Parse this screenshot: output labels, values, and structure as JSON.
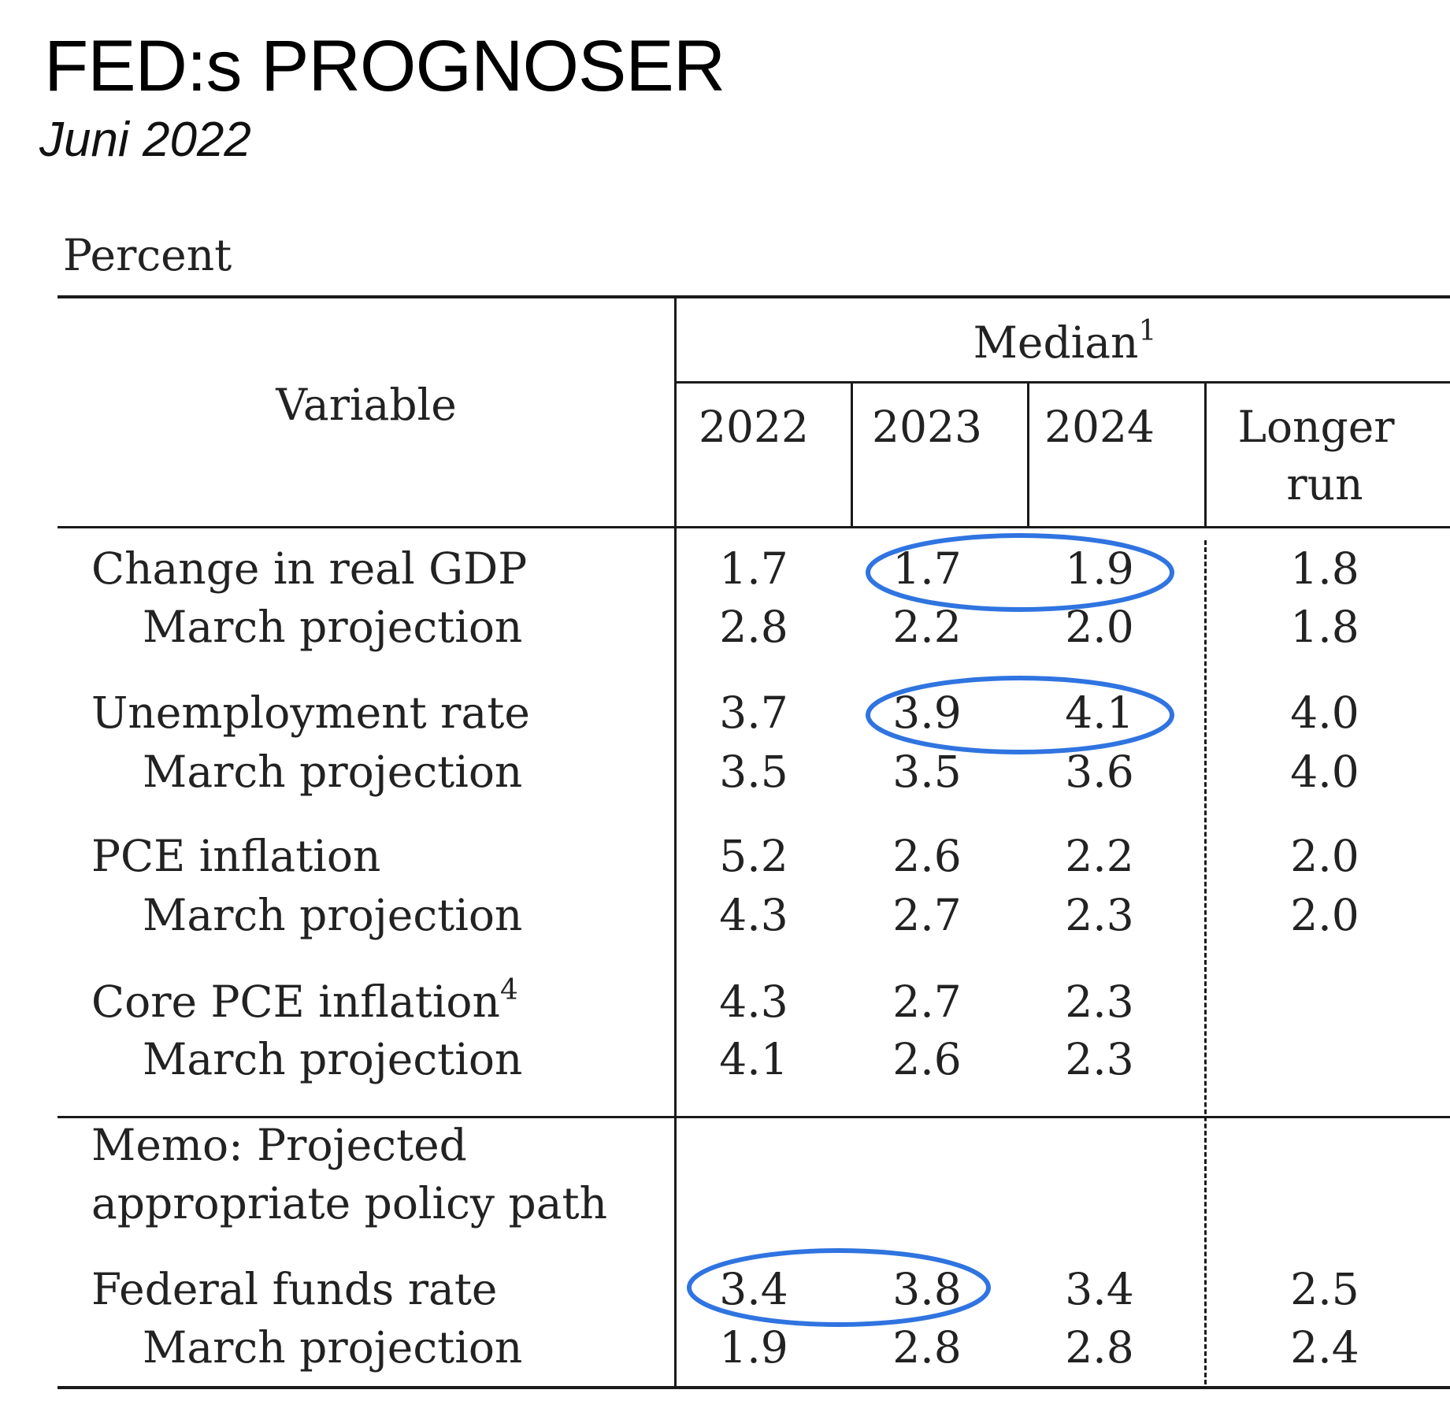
{
  "title": "FED:s PROGNOSER",
  "subtitle": "Juni 2022",
  "table": {
    "unit": "Percent",
    "variable_header": "Variable",
    "median_header": "Median",
    "median_sup": "1",
    "columns": [
      "2022",
      "2023",
      "2024"
    ],
    "longer_run_1": "Longer",
    "longer_run_2": "run",
    "rows": [
      {
        "label": "Change in real GDP",
        "values": [
          "1.7",
          "1.7",
          "1.9",
          "1.8"
        ]
      },
      {
        "label": "March projection",
        "values": [
          "2.8",
          "2.2",
          "2.0",
          "1.8"
        ]
      },
      {
        "label": "Unemployment rate",
        "values": [
          "3.7",
          "3.9",
          "4.1",
          "4.0"
        ]
      },
      {
        "label": "March projection",
        "values": [
          "3.5",
          "3.5",
          "3.6",
          "4.0"
        ]
      },
      {
        "label": "PCE inflation",
        "values": [
          "5.2",
          "2.6",
          "2.2",
          "2.0"
        ]
      },
      {
        "label": "March projection",
        "values": [
          "4.3",
          "2.7",
          "2.3",
          "2.0"
        ]
      },
      {
        "label": "Core PCE inflation",
        "sup": "4",
        "values": [
          "4.3",
          "2.7",
          "2.3",
          ""
        ]
      },
      {
        "label": "March projection",
        "values": [
          "4.1",
          "2.6",
          "2.3",
          ""
        ]
      }
    ],
    "memo_line1": "Memo: Projected",
    "memo_line2": "appropriate policy path",
    "memo_rows": [
      {
        "label": "Federal funds rate",
        "values": [
          "3.4",
          "3.8",
          "3.4",
          "2.5"
        ]
      },
      {
        "label": "March projection",
        "values": [
          "1.9",
          "2.8",
          "2.8",
          "2.4"
        ]
      }
    ]
  },
  "highlight_color": "#2f74e0"
}
